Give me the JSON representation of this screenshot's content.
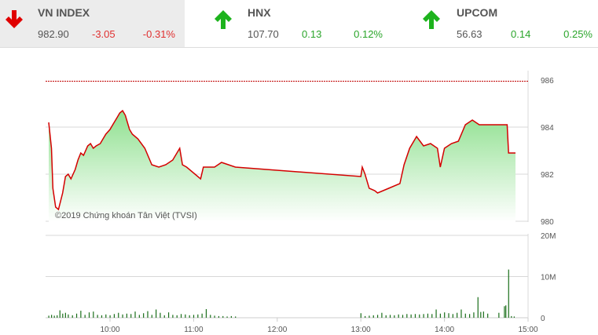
{
  "colors": {
    "down": "#e00000",
    "up": "#1db31d",
    "line": "#d40000",
    "volume": "#1a6e1a"
  },
  "indices": [
    {
      "name": "VN INDEX",
      "value": "982.90",
      "change": "-3.05",
      "percent": "-0.31%",
      "direction": "down",
      "icon": "arrow-down-icon"
    },
    {
      "name": "HNX",
      "value": "107.70",
      "change": "0.13",
      "percent": "0.12%",
      "direction": "up",
      "icon": "arrow-up-icon"
    },
    {
      "name": "UPCOM",
      "value": "56.63",
      "change": "0.14",
      "percent": "0.25%",
      "direction": "up",
      "icon": "arrow-up-icon"
    }
  ],
  "chart_data": [
    {
      "type": "area",
      "watermark": "©2019 Chứng khoán Tân Việt (TVSI)",
      "reference": 985.95,
      "ylim": [
        980,
        986
      ],
      "yticks": [
        "980",
        "982",
        "984",
        "986"
      ],
      "xticks": [
        "10:00",
        "11:00",
        "12:00",
        "13:00",
        "14:00",
        "15:00"
      ],
      "xlim": [
        "09:15",
        "15:00"
      ],
      "grid": true,
      "points": [
        [
          "09:16",
          984.2
        ],
        [
          "09:18",
          983.1
        ],
        [
          "09:19",
          981.4
        ],
        [
          "09:21",
          980.6
        ],
        [
          "09:23",
          980.5
        ],
        [
          "09:26",
          981.2
        ],
        [
          "09:28",
          981.9
        ],
        [
          "09:30",
          982.0
        ],
        [
          "09:32",
          981.8
        ],
        [
          "09:35",
          982.2
        ],
        [
          "09:37",
          982.6
        ],
        [
          "09:39",
          982.9
        ],
        [
          "09:41",
          982.8
        ],
        [
          "09:44",
          983.2
        ],
        [
          "09:46",
          983.3
        ],
        [
          "09:48",
          983.1
        ],
        [
          "09:50",
          983.2
        ],
        [
          "09:53",
          983.3
        ],
        [
          "09:55",
          983.5
        ],
        [
          "09:57",
          983.7
        ],
        [
          "10:00",
          983.9
        ],
        [
          "10:02",
          984.1
        ],
        [
          "10:05",
          984.4
        ],
        [
          "10:07",
          984.6
        ],
        [
          "10:09",
          984.7
        ],
        [
          "10:11",
          984.5
        ],
        [
          "10:14",
          983.9
        ],
        [
          "10:16",
          983.7
        ],
        [
          "10:20",
          983.5
        ],
        [
          "10:25",
          983.1
        ],
        [
          "10:30",
          982.4
        ],
        [
          "10:35",
          982.3
        ],
        [
          "10:40",
          982.4
        ],
        [
          "10:45",
          982.6
        ],
        [
          "10:50",
          983.1
        ],
        [
          "10:52",
          982.4
        ],
        [
          "10:55",
          982.3
        ],
        [
          "11:05",
          981.8
        ],
        [
          "11:07",
          982.3
        ],
        [
          "11:15",
          982.3
        ],
        [
          "11:20",
          982.5
        ],
        [
          "11:30",
          982.3
        ],
        [
          "13:00",
          981.9
        ],
        [
          "13:01",
          982.3
        ],
        [
          "13:03",
          982.0
        ],
        [
          "13:06",
          981.4
        ],
        [
          "13:10",
          981.3
        ],
        [
          "13:12",
          981.2
        ],
        [
          "13:20",
          981.4
        ],
        [
          "13:28",
          981.6
        ],
        [
          "13:31",
          982.4
        ],
        [
          "13:35",
          983.1
        ],
        [
          "13:40",
          983.6
        ],
        [
          "13:45",
          983.2
        ],
        [
          "13:50",
          983.3
        ],
        [
          "13:55",
          983.1
        ],
        [
          "13:57",
          982.3
        ],
        [
          "14:00",
          983.1
        ],
        [
          "14:05",
          983.3
        ],
        [
          "14:10",
          983.4
        ],
        [
          "14:15",
          984.1
        ],
        [
          "14:20",
          984.3
        ],
        [
          "14:25",
          984.1
        ],
        [
          "14:45",
          984.1
        ],
        [
          "14:46",
          982.9
        ],
        [
          "14:51",
          982.9
        ]
      ]
    },
    {
      "type": "bar",
      "ylim": [
        0,
        20
      ],
      "yticks": [
        "0",
        "10M",
        "20M"
      ],
      "unit": "M",
      "bars": [
        [
          "09:16",
          0.5
        ],
        [
          "09:18",
          0.7
        ],
        [
          "09:20",
          0.5
        ],
        [
          "09:22",
          0.6
        ],
        [
          "09:24",
          1.8
        ],
        [
          "09:26",
          1.0
        ],
        [
          "09:28",
          1.2
        ],
        [
          "09:30",
          0.8
        ],
        [
          "09:33",
          0.6
        ],
        [
          "09:36",
          1.0
        ],
        [
          "09:39",
          1.7
        ],
        [
          "09:42",
          0.7
        ],
        [
          "09:45",
          1.3
        ],
        [
          "09:48",
          1.5
        ],
        [
          "09:51",
          0.7
        ],
        [
          "09:54",
          0.6
        ],
        [
          "09:57",
          0.8
        ],
        [
          "10:00",
          0.6
        ],
        [
          "10:03",
          0.9
        ],
        [
          "10:06",
          1.2
        ],
        [
          "10:09",
          0.8
        ],
        [
          "10:12",
          1.0
        ],
        [
          "10:15",
          0.9
        ],
        [
          "10:18",
          1.5
        ],
        [
          "10:21",
          0.7
        ],
        [
          "10:24",
          1.1
        ],
        [
          "10:27",
          1.6
        ],
        [
          "10:30",
          0.7
        ],
        [
          "10:33",
          2.0
        ],
        [
          "10:36",
          1.2
        ],
        [
          "10:39",
          0.6
        ],
        [
          "10:42",
          1.3
        ],
        [
          "10:45",
          0.7
        ],
        [
          "10:48",
          0.6
        ],
        [
          "10:51",
          0.9
        ],
        [
          "10:54",
          0.8
        ],
        [
          "10:57",
          0.6
        ],
        [
          "11:00",
          0.7
        ],
        [
          "11:03",
          0.8
        ],
        [
          "11:06",
          1.0
        ],
        [
          "11:09",
          2.1
        ],
        [
          "11:12",
          0.7
        ],
        [
          "11:15",
          0.5
        ],
        [
          "11:18",
          0.4
        ],
        [
          "11:21",
          0.4
        ],
        [
          "11:24",
          0.3
        ],
        [
          "11:27",
          0.4
        ],
        [
          "11:30",
          0.3
        ],
        [
          "13:00",
          1.1
        ],
        [
          "13:03",
          0.4
        ],
        [
          "13:06",
          0.5
        ],
        [
          "13:09",
          0.6
        ],
        [
          "13:12",
          0.7
        ],
        [
          "13:15",
          1.2
        ],
        [
          "13:18",
          0.6
        ],
        [
          "13:21",
          0.7
        ],
        [
          "13:24",
          0.6
        ],
        [
          "13:27",
          0.8
        ],
        [
          "13:30",
          0.7
        ],
        [
          "13:33",
          0.9
        ],
        [
          "13:36",
          0.8
        ],
        [
          "13:39",
          0.9
        ],
        [
          "13:42",
          0.8
        ],
        [
          "13:45",
          0.9
        ],
        [
          "13:48",
          1.0
        ],
        [
          "13:51",
          0.9
        ],
        [
          "13:54",
          2.0
        ],
        [
          "13:57",
          1.0
        ],
        [
          "14:00",
          1.3
        ],
        [
          "14:03",
          1.1
        ],
        [
          "14:06",
          0.9
        ],
        [
          "14:09",
          1.2
        ],
        [
          "14:12",
          2.0
        ],
        [
          "14:15",
          1.0
        ],
        [
          "14:18",
          0.9
        ],
        [
          "14:21",
          1.3
        ],
        [
          "14:24",
          5.0
        ],
        [
          "14:26",
          1.4
        ],
        [
          "14:28",
          1.5
        ],
        [
          "14:31",
          1.0
        ],
        [
          "14:39",
          1.2
        ],
        [
          "14:43",
          2.8
        ],
        [
          "14:44",
          3.0
        ],
        [
          "14:46",
          11.7
        ],
        [
          "14:48",
          0.4
        ],
        [
          "14:50",
          0.3
        ]
      ]
    }
  ]
}
